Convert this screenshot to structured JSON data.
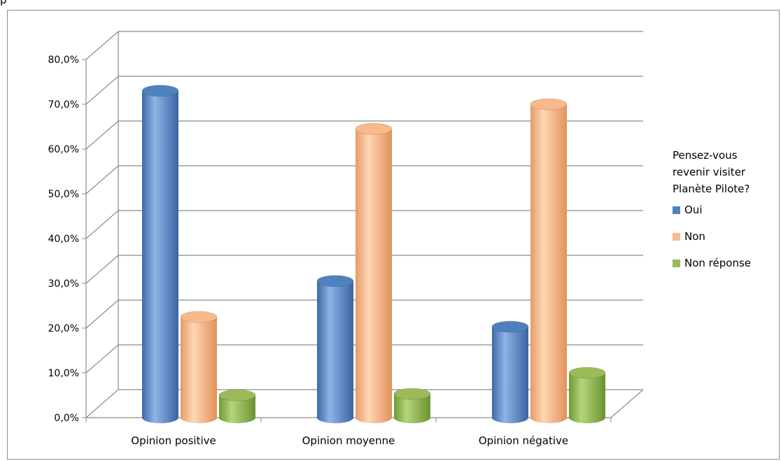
{
  "chart_data": {
    "type": "bar",
    "style": "3d-cylinder",
    "categories": [
      "Opinion positive",
      "Opinion moyenne",
      "Opinion négative"
    ],
    "series": [
      {
        "name": "Oui",
        "color": "#4f81bd",
        "values": [
          73.0,
          30.5,
          20.3
        ]
      },
      {
        "name": "Non",
        "color": "#f9b98a",
        "values": [
          22.5,
          64.5,
          70.0
        ]
      },
      {
        "name": "Non réponse",
        "color": "#9bbb59",
        "values": [
          5.0,
          5.3,
          10.0
        ]
      }
    ],
    "ylim": [
      0,
      80
    ],
    "ytick_step": 10,
    "ytick_labels": [
      "0,0%",
      "10,0%",
      "20,0%",
      "30,0%",
      "40,0%",
      "50,0%",
      "60,0%",
      "70,0%",
      "80,0%"
    ],
    "grid": true,
    "legend": {
      "title_lines": [
        "Pensez-vous",
        "revenir visiter",
        "Planète Pilote?"
      ],
      "placement": "right"
    },
    "xlabel": "",
    "ylabel": ""
  }
}
